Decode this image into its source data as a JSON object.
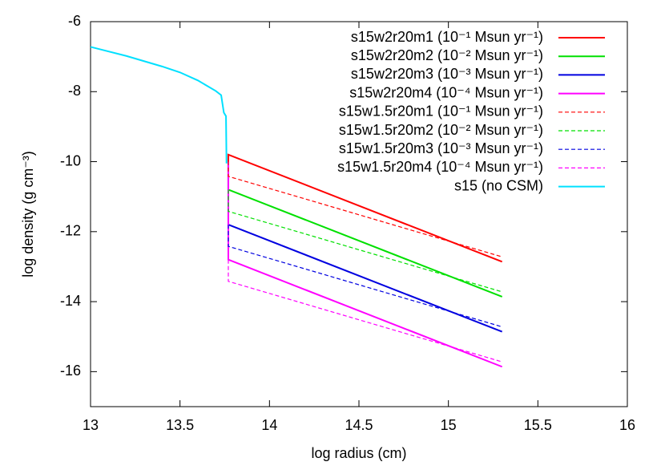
{
  "chart_data": {
    "type": "line",
    "xlabel": "log radius (cm)",
    "ylabel": "log density (g cm⁻³)",
    "xlim": [
      13,
      16
    ],
    "xticks": [
      13,
      13.5,
      14,
      14.5,
      15,
      15.5,
      16
    ],
    "ylim": [
      -17,
      -6
    ],
    "yticks": [
      -16,
      -14,
      -12,
      -10,
      -8,
      -6
    ],
    "legend": "top-right",
    "series": [
      {
        "name": "s15w2r20m1 (10⁻¹ Msun yr⁻¹)",
        "color": "#ff0000",
        "dashed": false,
        "x": [
          13.77,
          13.77,
          15.3
        ],
        "values": [
          -10.0,
          -9.8,
          -12.86
        ]
      },
      {
        "name": "s15w2r20m2 (10⁻² Msun yr⁻¹)",
        "color": "#00e000",
        "dashed": false,
        "x": [
          13.77,
          13.77,
          15.3
        ],
        "values": [
          -10.0,
          -10.8,
          -13.86
        ]
      },
      {
        "name": "s15w2r20m3 (10⁻³ Msun yr⁻¹)",
        "color": "#0000e0",
        "dashed": false,
        "x": [
          13.77,
          13.77,
          15.3
        ],
        "values": [
          -10.0,
          -11.8,
          -14.86
        ]
      },
      {
        "name": "s15w2r20m4 (10⁻⁴ Msun yr⁻¹)",
        "color": "#ff00ff",
        "dashed": false,
        "x": [
          13.77,
          13.77,
          15.3
        ],
        "values": [
          -10.0,
          -12.8,
          -15.86
        ]
      },
      {
        "name": "s15w1.5r20m1 (10⁻¹ Msun yr⁻¹)",
        "color": "#ff0000",
        "dashed": true,
        "x": [
          13.77,
          13.77,
          15.3
        ],
        "values": [
          -9.8,
          -10.42,
          -12.72
        ]
      },
      {
        "name": "s15w1.5r20m2 (10⁻² Msun yr⁻¹)",
        "color": "#00e000",
        "dashed": true,
        "x": [
          13.77,
          13.77,
          15.3
        ],
        "values": [
          -10.8,
          -11.42,
          -13.72
        ]
      },
      {
        "name": "s15w1.5r20m3 (10⁻³ Msun yr⁻¹)",
        "color": "#0000e0",
        "dashed": true,
        "x": [
          13.77,
          13.77,
          15.3
        ],
        "values": [
          -11.8,
          -12.42,
          -14.72
        ]
      },
      {
        "name": "s15w1.5r20m4 (10⁻⁴ Msun yr⁻¹)",
        "color": "#ff00ff",
        "dashed": true,
        "x": [
          13.77,
          13.77,
          15.3
        ],
        "values": [
          -12.8,
          -13.42,
          -15.72
        ]
      },
      {
        "name": "s15 (no CSM)",
        "color": "#00e0ff",
        "dashed": false,
        "x": [
          13,
          13.2,
          13.4,
          13.5,
          13.6,
          13.7,
          13.73,
          13.745,
          13.757,
          13.76
        ],
        "values": [
          -6.72,
          -6.98,
          -7.28,
          -7.45,
          -7.68,
          -7.98,
          -8.1,
          -8.6,
          -8.7,
          -10.05
        ]
      }
    ]
  }
}
